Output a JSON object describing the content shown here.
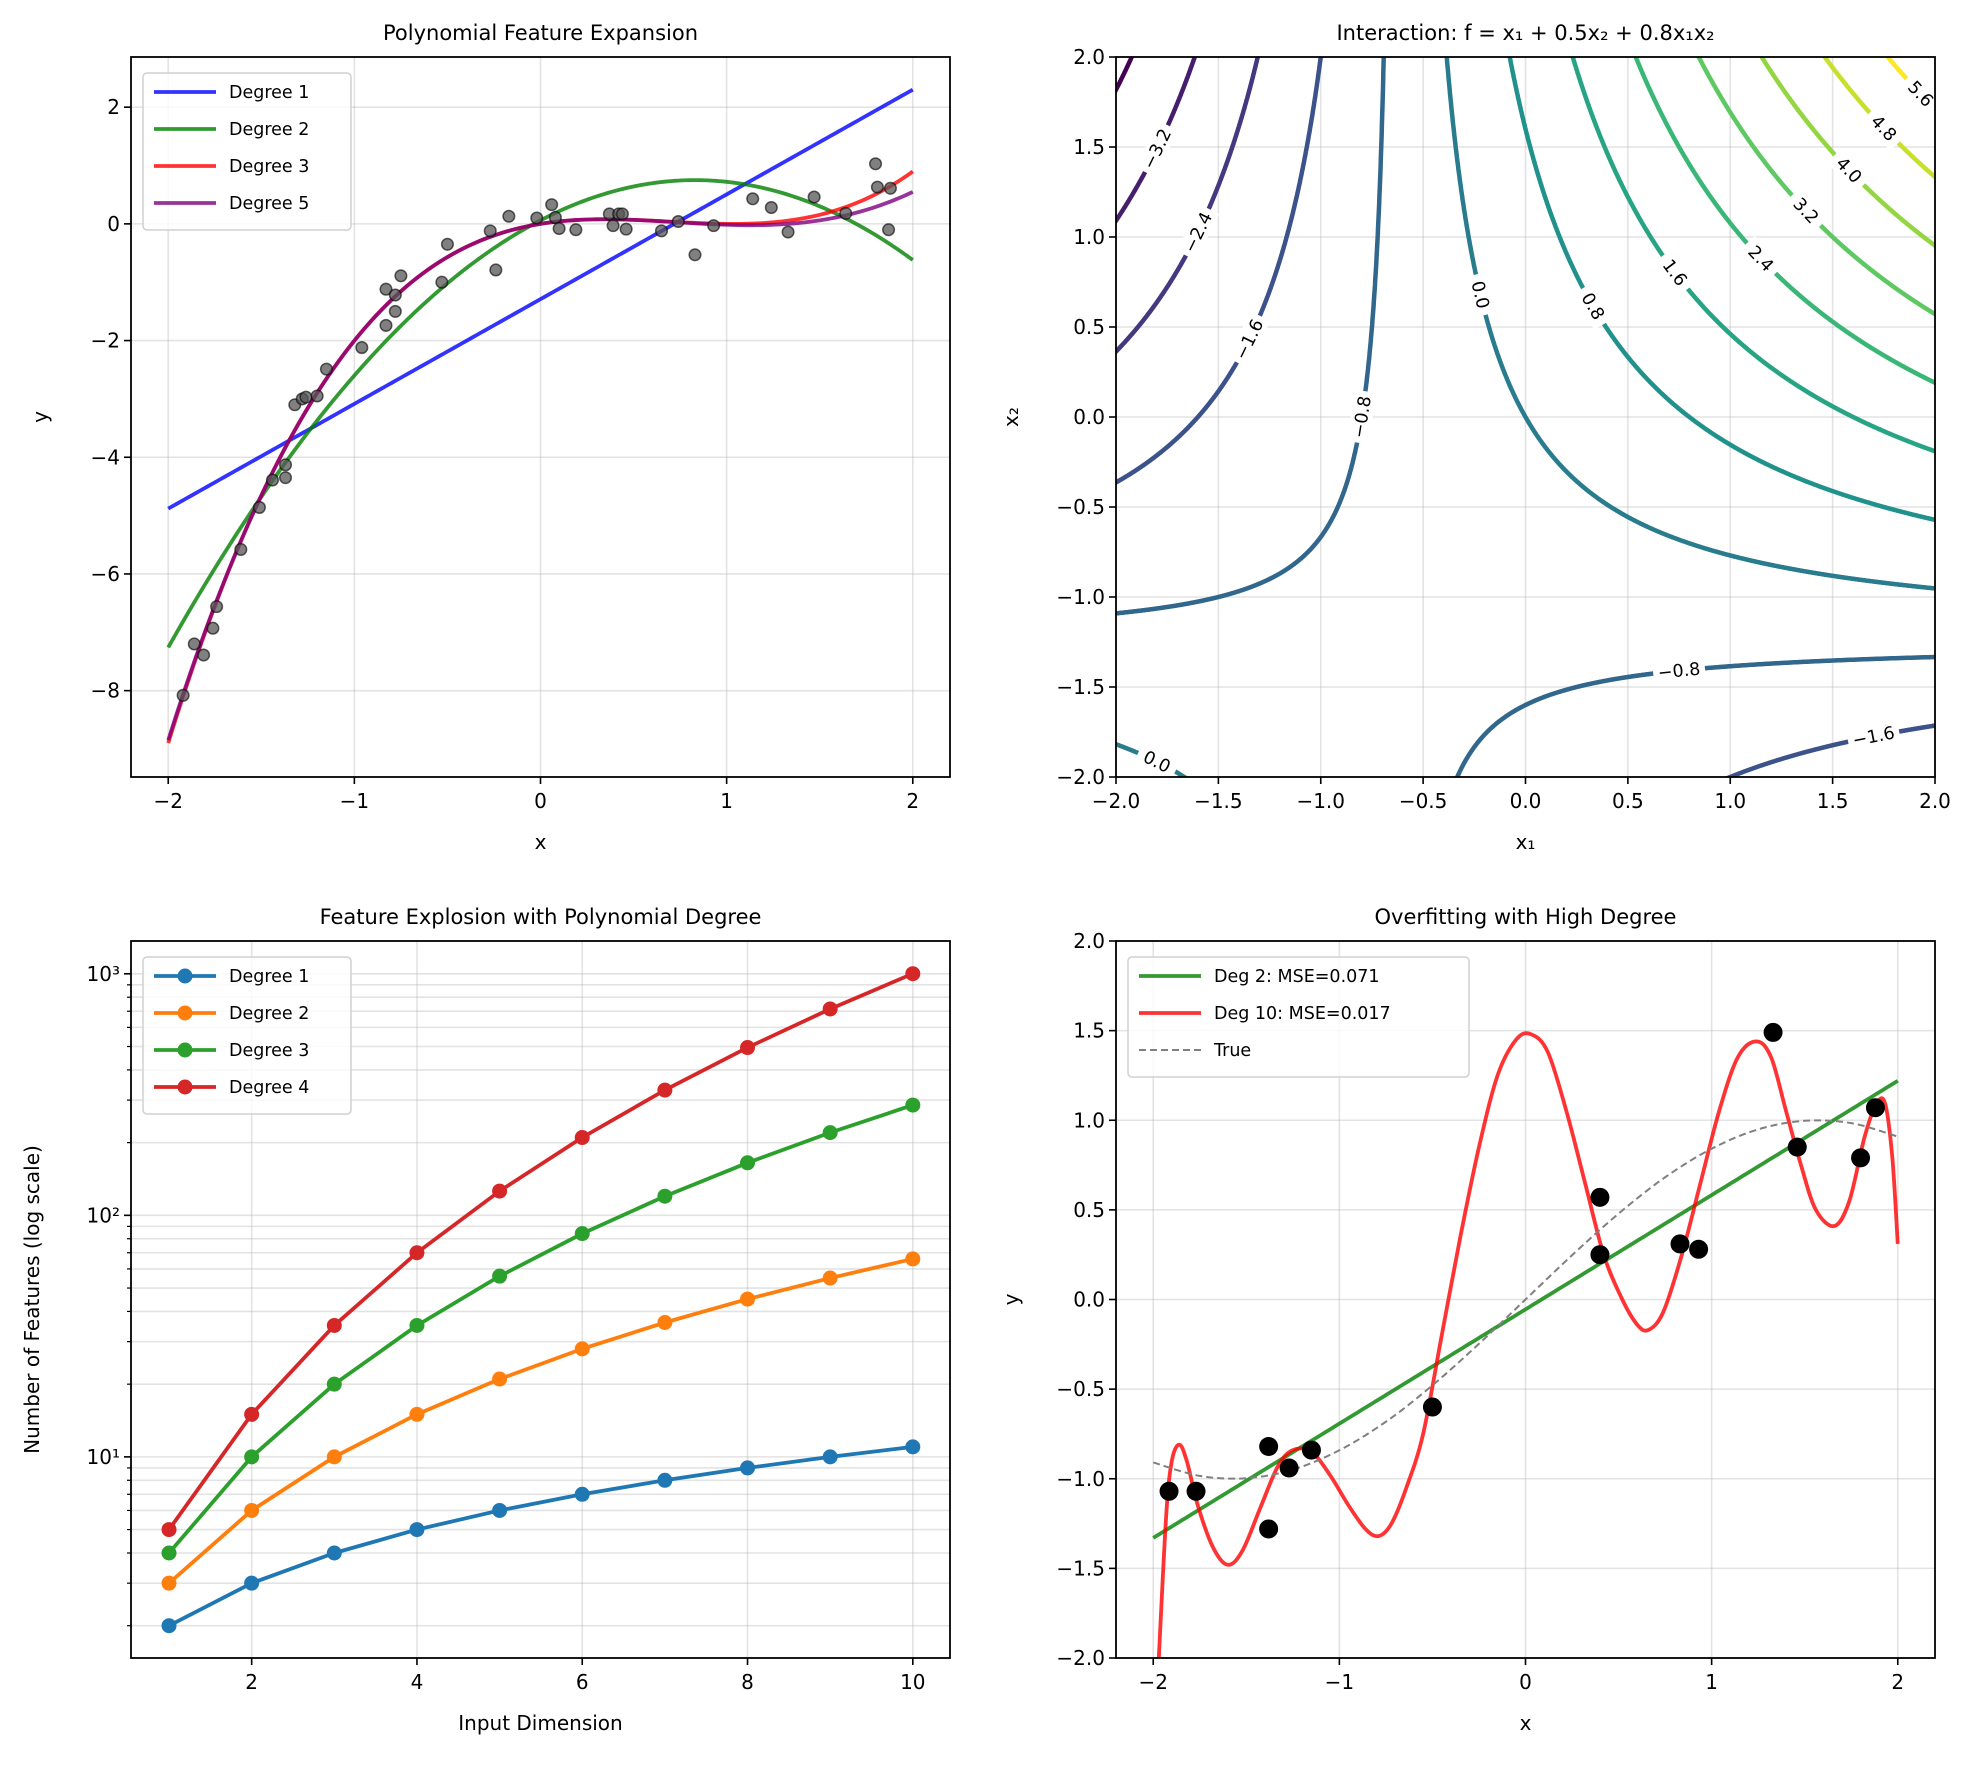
{
  "chart_data": [
    {
      "type": "line+scatter",
      "title": "Polynomial Feature Expansion",
      "xlabel": "x",
      "ylabel": "y",
      "xlim": [
        -2.2,
        2.2
      ],
      "ylim": [
        -9.48,
        2.86
      ],
      "xticks": [
        -2,
        -1,
        0,
        1,
        2
      ],
      "xtick_labels": [
        "−2",
        "−1",
        "0",
        "1",
        "2"
      ],
      "yticks": [
        -8,
        -6,
        -4,
        -2,
        0,
        2
      ],
      "ytick_labels": [
        "−8",
        "−6",
        "−4",
        "−2",
        "0",
        "2"
      ],
      "grid": true,
      "legend": "upper left",
      "series": [
        {
          "name": "Degree 1",
          "color": "#0000ff",
          "coefficients": [
            -1.29,
            1.795
          ]
        },
        {
          "name": "Degree 2",
          "color": "#008000",
          "coefficients": [
            0.061,
            1.66,
            -1.0
          ]
        },
        {
          "name": "Degree 3",
          "color": "#ff0000",
          "coefficients": [
            0,
            0.517,
            -1.0,
            0.483
          ]
        },
        {
          "name": "Degree 5",
          "color": "#800080",
          "coefficients": [
            0,
            0.517,
            -1.0,
            0.483,
            -0.0094,
            -0.00625
          ]
        }
      ],
      "points": {
        "color": "#555555",
        "x": [
          -1.92,
          -1.86,
          -1.81,
          -1.76,
          -1.74,
          -1.61,
          -1.51,
          -1.44,
          -1.37,
          -1.37,
          -1.32,
          -1.28,
          -1.26,
          -1.2,
          -1.15,
          -0.96,
          -0.83,
          -0.78,
          -0.83,
          -0.78,
          -0.75,
          -0.53,
          -0.5,
          -0.27,
          -0.24,
          -0.17,
          -0.02,
          0.06,
          0.08,
          0.1,
          0.19,
          0.37,
          0.39,
          0.42,
          0.44,
          0.46,
          0.65,
          0.74,
          0.83,
          0.93,
          1.14,
          1.24,
          1.33,
          1.47,
          1.64,
          1.8,
          1.81,
          1.87,
          1.88
        ],
        "y": [
          -8.08,
          -7.2,
          -7.39,
          -6.93,
          -6.56,
          -5.58,
          -4.86,
          -4.39,
          -4.35,
          -4.13,
          -3.1,
          -3.0,
          -2.97,
          -2.95,
          -2.49,
          -2.12,
          -1.74,
          -1.5,
          -1.12,
          -1.22,
          -0.89,
          -1.0,
          -0.35,
          -0.12,
          -0.79,
          0.13,
          0.1,
          0.33,
          0.11,
          -0.08,
          -0.1,
          0.17,
          -0.03,
          0.17,
          0.17,
          -0.09,
          -0.12,
          0.04,
          -0.53,
          -0.03,
          0.43,
          0.28,
          -0.14,
          0.46,
          0.18,
          1.03,
          0.63,
          -0.1,
          0.61
        ]
      }
    },
    {
      "type": "contour",
      "title": "Interaction: f = x₁ + 0.5x₂ + 0.8x₁x₂",
      "xlabel": "x₁",
      "ylabel": "x₂",
      "xlim": [
        -2,
        2
      ],
      "ylim": [
        -2,
        2
      ],
      "xticks": [
        -2,
        -1.5,
        -1,
        -0.5,
        0,
        0.5,
        1,
        1.5,
        2
      ],
      "xtick_labels": [
        "−2.0",
        "−1.5",
        "−1.0",
        "−0.5",
        "0.0",
        "0.5",
        "1.0",
        "1.5",
        "2.0"
      ],
      "yticks": [
        -2,
        -1.5,
        -1,
        -0.5,
        0,
        0.5,
        1,
        1.5,
        2
      ],
      "ytick_labels": [
        "−2.0",
        "−1.5",
        "−1.0",
        "−0.5",
        "0.0",
        "0.5",
        "1.0",
        "1.5",
        "2.0"
      ],
      "grid": true,
      "colormap": "viridis",
      "function_coefficients": {
        "x1": 1,
        "x2": 0.5,
        "x1x2": 0.8
      },
      "levels": [
        -4.0,
        -3.2,
        -2.4,
        -1.6,
        -0.8,
        0.0,
        0.8,
        1.6,
        2.4,
        3.2,
        4.0,
        4.8,
        5.6
      ],
      "contour_labels": [
        {
          "level": -3.2,
          "text": "−3.2"
        },
        {
          "level": -2.4,
          "text": "−2.4"
        },
        {
          "level": -1.6,
          "text": "−1.6"
        },
        {
          "level": -0.8,
          "text": "−0.8"
        },
        {
          "level": 0.0,
          "text": "0.0"
        },
        {
          "level": 0.8,
          "text": "0.8"
        },
        {
          "level": 1.6,
          "text": "1.6"
        },
        {
          "level": 2.4,
          "text": "2.4"
        },
        {
          "level": 3.2,
          "text": "3.2"
        },
        {
          "level": 4.0,
          "text": "4.0"
        },
        {
          "level": 4.8,
          "text": "4.8"
        },
        {
          "level": 5.6,
          "text": "5.6"
        },
        {
          "level": -0.8,
          "text": "−0.8"
        },
        {
          "level": -1.6,
          "text": "−1.6"
        },
        {
          "level": 0.0,
          "text": "0.0"
        }
      ]
    },
    {
      "type": "line",
      "title": "Feature Explosion with Polynomial Degree",
      "xlabel": "Input Dimension",
      "ylabel": "Number of Features (log scale)",
      "yscale": "log",
      "xlim": [
        0.54,
        10.45
      ],
      "ylim": [
        1.47,
        1367
      ],
      "xticks": [
        2,
        4,
        6,
        8,
        10
      ],
      "xtick_labels": [
        "2",
        "4",
        "6",
        "8",
        "10"
      ],
      "yticks": [
        10,
        100,
        1000
      ],
      "ytick_labels": [
        "10¹",
        "10²",
        "10³"
      ],
      "grid": true,
      "legend": "upper left",
      "x": [
        1,
        2,
        3,
        4,
        5,
        6,
        7,
        8,
        9,
        10
      ],
      "series": [
        {
          "name": "Degree 1",
          "color": "#1f77b4",
          "values": [
            2,
            3,
            4,
            5,
            6,
            7,
            8,
            9,
            10,
            11
          ]
        },
        {
          "name": "Degree 2",
          "color": "#ff7f0e",
          "values": [
            3,
            6,
            10,
            15,
            21,
            28,
            36,
            45,
            55,
            66
          ]
        },
        {
          "name": "Degree 3",
          "color": "#2ca02c",
          "values": [
            4,
            10,
            20,
            35,
            56,
            84,
            120,
            165,
            220,
            286
          ]
        },
        {
          "name": "Degree 4",
          "color": "#d62728",
          "values": [
            5,
            15,
            35,
            70,
            126,
            210,
            330,
            495,
            715,
            1001
          ]
        }
      ]
    },
    {
      "type": "line+scatter",
      "title": "Overfitting with High Degree",
      "xlabel": "x",
      "ylabel": "y",
      "xlim": [
        -2.2,
        2.2
      ],
      "ylim": [
        -2,
        2
      ],
      "xticks": [
        -2,
        -1,
        0,
        1,
        2
      ],
      "xtick_labels": [
        "−2",
        "−1",
        "0",
        "1",
        "2"
      ],
      "yticks": [
        -2,
        -1.5,
        -1,
        -0.5,
        0,
        0.5,
        1,
        1.5,
        2
      ],
      "ytick_labels": [
        "−2.0",
        "−1.5",
        "−1.0",
        "−0.5",
        "0.0",
        "0.5",
        "1.0",
        "1.5",
        "2.0"
      ],
      "grid": true,
      "legend": "upper left",
      "series": [
        {
          "name": "Deg 2: MSE=0.071",
          "color": "#008000",
          "coefficients": [
            -0.055,
            0.6375,
            0
          ]
        },
        {
          "name": "Deg 10: MSE=0.017",
          "color": "#ff0000",
          "x": [
            -1.97,
            -1.93,
            -1.9,
            -1.86,
            -1.82,
            -1.76,
            -1.68,
            -1.6,
            -1.52,
            -1.42,
            -1.33,
            -1.25,
            -1.15,
            -1.05,
            -0.95,
            -0.86,
            -0.79,
            -0.72,
            -0.64,
            -0.55,
            -0.45,
            -0.35,
            -0.25,
            -0.15,
            -0.05,
            0.03,
            0.12,
            0.22,
            0.32,
            0.42,
            0.52,
            0.6,
            0.66,
            0.74,
            0.84,
            0.94,
            1.04,
            1.14,
            1.24,
            1.32,
            1.4,
            1.48,
            1.56,
            1.66,
            1.74,
            1.82,
            1.88,
            1.93,
            1.97,
            2.0
          ],
          "y": [
            -2.0,
            -1.2,
            -0.9,
            -0.81,
            -0.9,
            -1.15,
            -1.38,
            -1.48,
            -1.4,
            -1.15,
            -0.93,
            -0.84,
            -0.85,
            -0.98,
            -1.15,
            -1.28,
            -1.32,
            -1.25,
            -1.05,
            -0.75,
            -0.2,
            0.35,
            0.85,
            1.25,
            1.45,
            1.48,
            1.38,
            1.05,
            0.65,
            0.25,
            0.0,
            -0.14,
            -0.17,
            -0.07,
            0.25,
            0.65,
            1.05,
            1.35,
            1.44,
            1.35,
            1.05,
            0.75,
            0.5,
            0.41,
            0.55,
            0.9,
            1.08,
            1.1,
            0.8,
            0.31
          ]
        },
        {
          "name": "True",
          "color": "#808080",
          "dashed": true,
          "x": [
            -2,
            -1.75,
            -1.5,
            -1.25,
            -1,
            -0.75,
            -0.5,
            -0.25,
            0,
            0.25,
            0.5,
            0.75,
            1,
            1.25,
            1.5,
            1.75,
            2
          ],
          "y": [
            -0.909,
            -0.984,
            -0.997,
            -0.949,
            -0.841,
            -0.682,
            -0.479,
            -0.247,
            0,
            0.247,
            0.479,
            0.682,
            0.841,
            0.949,
            0.997,
            0.984,
            0.909
          ]
        }
      ],
      "points": {
        "color": "#000000",
        "x": [
          -1.915,
          -1.77,
          -1.38,
          -1.38,
          -1.27,
          -1.15,
          -0.5,
          0.4,
          0.4,
          0.83,
          0.93,
          1.33,
          1.46,
          1.8,
          1.88
        ],
        "y": [
          -1.07,
          -1.07,
          -0.82,
          -1.28,
          -0.94,
          -0.84,
          -0.6,
          0.57,
          0.25,
          0.31,
          0.28,
          1.49,
          0.85,
          0.79,
          1.07
        ]
      }
    }
  ]
}
